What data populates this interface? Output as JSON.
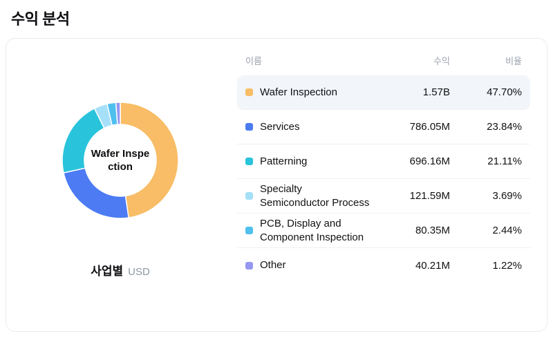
{
  "page": {
    "title": "수익 분석"
  },
  "card": {
    "center_label": "Wafer Inspection",
    "caption": {
      "label": "사업별",
      "unit": "USD"
    },
    "table": {
      "headers": {
        "name": "이름",
        "revenue": "수익",
        "ratio": "비율"
      }
    }
  },
  "chart_data": {
    "type": "pie",
    "donut": true,
    "title": "수익 분석",
    "center_label": "Wafer Inspection",
    "group_label": "사업별",
    "unit": "USD",
    "legend_position": "right",
    "categories": [
      "Wafer Inspection",
      "Services",
      "Patterning",
      "Specialty Semiconductor Process",
      "PCB, Display and Component Inspection",
      "Other"
    ],
    "values": [
      47.7,
      23.84,
      21.11,
      3.69,
      2.44,
      1.22
    ],
    "revenues": [
      "1.57B",
      "786.05M",
      "696.16M",
      "121.59M",
      "80.35M",
      "40.21M"
    ],
    "ratios": [
      "47.70%",
      "23.84%",
      "21.11%",
      "3.69%",
      "2.44%",
      "1.22%"
    ],
    "colors": [
      "#F8BD66",
      "#4C7BF4",
      "#29C4DB",
      "#A6E0F8",
      "#4FC0EE",
      "#9697F1"
    ],
    "highlighted_index": 0
  }
}
